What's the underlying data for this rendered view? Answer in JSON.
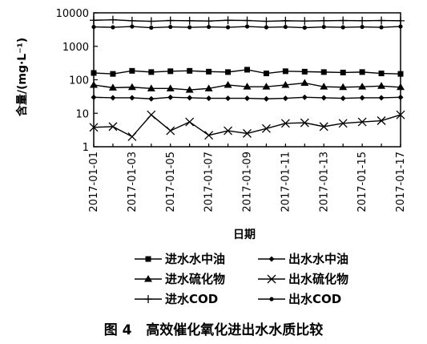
{
  "chart_data": {
    "type": "line",
    "ylabel": "含量/(mg·L⁻¹)",
    "xlabel": "日期",
    "yscale": "log",
    "ylim": [
      1,
      10000
    ],
    "yticks": [
      "1",
      "10",
      "100",
      "1000",
      "10000"
    ],
    "x": [
      "2017-01-01",
      "2017-01-02",
      "2017-01-03",
      "2017-01-04",
      "2017-01-05",
      "2017-01-06",
      "2017-01-07",
      "2017-01-08",
      "2017-01-09",
      "2017-01-10",
      "2017-01-11",
      "2017-01-12",
      "2017-01-13",
      "2017-01-14",
      "2017-01-15",
      "2017-01-16",
      "2017-01-17"
    ],
    "xtick_labels": [
      "2017-01-01",
      "2017-01-03",
      "2017-01-05",
      "2017-01-07",
      "2017-01-09",
      "2017-01-11",
      "2017-01-13",
      "2017-01-15",
      "2017-01-17"
    ],
    "grid": false,
    "legend_position": "bottom",
    "series": [
      {
        "name": "进水水中油",
        "marker": "square",
        "values": [
          160,
          150,
          185,
          170,
          180,
          185,
          175,
          170,
          200,
          155,
          180,
          175,
          170,
          165,
          170,
          155,
          150
        ]
      },
      {
        "name": "出水水中油",
        "marker": "diamond",
        "values": [
          30,
          29,
          29,
          27,
          30,
          29,
          28,
          28,
          28,
          27,
          28,
          30,
          29,
          28,
          29,
          29,
          30
        ]
      },
      {
        "name": "进水硫化物",
        "marker": "triangle",
        "values": [
          70,
          58,
          60,
          55,
          55,
          50,
          55,
          70,
          62,
          62,
          70,
          80,
          62,
          60,
          62,
          65,
          60
        ]
      },
      {
        "name": "出水硫化物",
        "marker": "x",
        "values": [
          3.8,
          4,
          2,
          9,
          3,
          5.5,
          2.2,
          3,
          2.5,
          3.5,
          5,
          5.2,
          4,
          5,
          5.5,
          6,
          9
        ]
      },
      {
        "name": "进水COD",
        "marker": "plus",
        "values": [
          6000,
          6200,
          5800,
          5600,
          5900,
          5800,
          5700,
          6000,
          5900,
          5600,
          5800,
          5700,
          5800,
          5900,
          5800,
          5900,
          5800
        ]
      },
      {
        "name": "出水COD",
        "marker": "dot",
        "values": [
          3800,
          3700,
          3900,
          3600,
          3800,
          3700,
          3800,
          3700,
          3900,
          3700,
          3800,
          3600,
          3800,
          3700,
          3800,
          3700,
          3900
        ]
      }
    ]
  },
  "caption": "图 4   高效催化氧化进出水水质比较"
}
